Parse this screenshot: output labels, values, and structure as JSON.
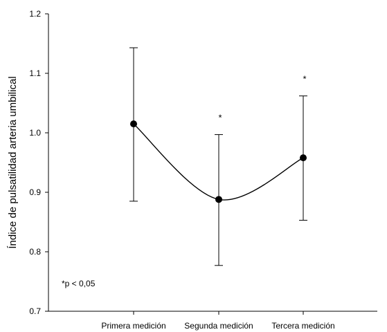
{
  "chart_data": {
    "type": "line",
    "categories": [
      "Primera medición",
      "Segunda medición",
      "Tercera medición"
    ],
    "series": [
      {
        "values": [
          1.015,
          0.888,
          0.958
        ],
        "error_low": [
          0.885,
          0.777,
          0.853
        ],
        "error_high": [
          1.143,
          0.997,
          1.062
        ],
        "significance": [
          "",
          "*",
          "*"
        ]
      }
    ],
    "ylabel": "Índice de pulsatilidad arteria umbilical",
    "xlabel": "",
    "ylim": [
      0.7,
      1.2
    ],
    "yticks": [
      "0.7",
      "0.8",
      "0.9",
      "1.0",
      "1.1",
      "1.2"
    ],
    "grid": false,
    "annotation": "*p < 0,05",
    "line_color": "#000000"
  }
}
